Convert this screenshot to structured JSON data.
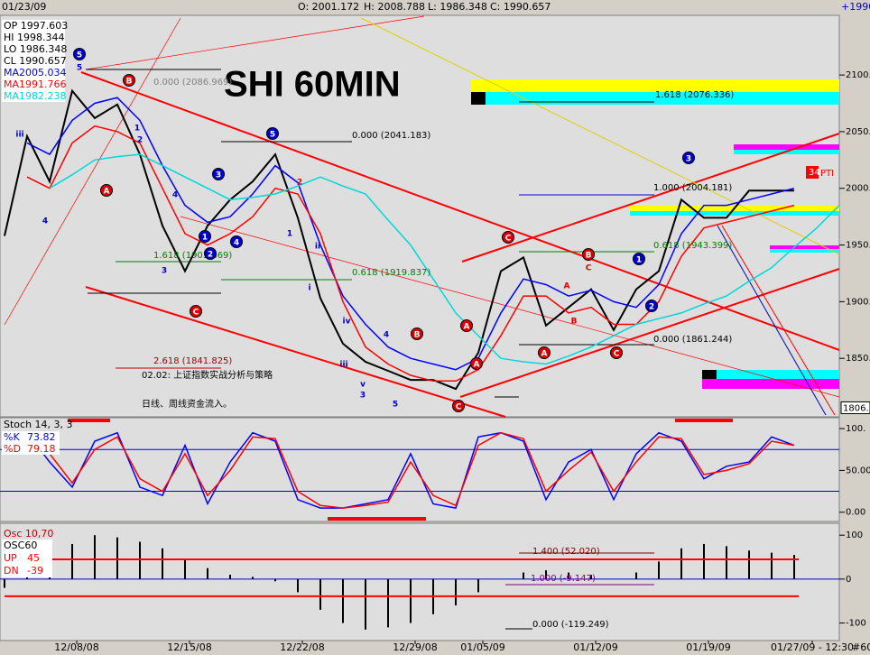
{
  "header": {
    "date": "01/23/09",
    "open": "O: 2001.172",
    "high": "H: 2008.788",
    "low": "L: 1986.348",
    "close": "C: 1990.657",
    "right": "+1990"
  },
  "footer": {
    "bar": "#60"
  },
  "chart_data": [
    {
      "type": "line",
      "title": "SHI 60MIN",
      "readout": [
        "OP 1997.603",
        "HI 1998.344",
        "LO 1986.348",
        "CL 1990.657"
      ],
      "x": [
        0,
        5,
        10,
        15,
        20,
        25,
        30,
        35,
        40,
        45,
        50,
        55,
        60,
        65,
        70,
        75,
        80,
        85,
        90,
        95,
        100,
        105,
        110,
        115,
        120,
        125,
        130,
        135,
        140,
        145,
        150,
        155,
        160,
        165,
        170,
        175,
        180,
        185
      ],
      "xlim": [
        0,
        185
      ],
      "ylim": [
        1800,
        2159
      ],
      "yticks": [
        {
          "value": 1850,
          "label": "1850."
        },
        {
          "value": 1900,
          "label": "1900."
        },
        {
          "value": 1950,
          "label": "1950."
        },
        {
          "value": 2000,
          "label": "2000."
        },
        {
          "value": 2050,
          "label": "2050."
        },
        {
          "value": 2100,
          "label": "2100."
        }
      ],
      "price_marker": {
        "value": 1806,
        "label": "1806."
      },
      "series": [
        {
          "color": "#000000",
          "values": [
            1958,
            2046,
            2006,
            2086,
            2062,
            2074,
            2030,
            1967,
            1927,
            1967,
            1990,
            2006,
            2030,
            1974,
            1903,
            1863,
            1847,
            1839,
            1831,
            1831,
            1823,
            1855,
            1927,
            1939,
            1879,
            1895,
            1911,
            1875,
            1911,
            1927,
            1990,
            1974,
            1974,
            1998,
            1998,
            1998,
            null,
            null
          ]
        },
        {
          "name": "MA2005.034",
          "color": "#0000ff",
          "values": [
            null,
            2040,
            2030,
            2060,
            2075,
            2080,
            2060,
            2020,
            1985,
            1970,
            1975,
            1995,
            2020,
            2005,
            1950,
            1905,
            1880,
            1860,
            1850,
            1845,
            1840,
            1850,
            1890,
            1920,
            1915,
            1905,
            1910,
            1900,
            1895,
            1915,
            1960,
            1985,
            1985,
            1990,
            1995,
            2000,
            null,
            null
          ]
        },
        {
          "name": "MA1991.766",
          "color": "#ff0000",
          "values": [
            null,
            2010,
            2000,
            2040,
            2055,
            2050,
            2040,
            2000,
            1960,
            1950,
            1960,
            1975,
            2000,
            1995,
            1960,
            1900,
            1860,
            1845,
            1835,
            1830,
            1830,
            1840,
            1870,
            1905,
            1905,
            1890,
            1895,
            1880,
            1880,
            1900,
            1940,
            1965,
            1970,
            1975,
            1980,
            1985,
            null,
            null
          ]
        },
        {
          "name": "MA1982.238",
          "color": "#00d8d8",
          "values": [
            null,
            null,
            2000,
            2012,
            2025,
            2028,
            2030,
            2020,
            2010,
            2000,
            1990,
            1992,
            1995,
            2002,
            2010,
            2002,
            1995,
            1972,
            1950,
            1920,
            1890,
            1870,
            1850,
            1847,
            1845,
            1852,
            1860,
            1870,
            1880,
            1885,
            1890,
            1898,
            1905,
            1918,
            1930,
            1948,
            1965,
            1985
          ]
        }
      ],
      "annotations": [
        "0.000 (2086.969)",
        "0.000 (2041.183)",
        "1.618 (2076.336)",
        "1.000 (2004.181)",
        "0.618 (1943.399)",
        "1.618 (1903.869)",
        "0.618 (1919.837)",
        "2.618 (1841.825)",
        "0.000 (1861.244)",
        "02.02: 上证指数实战分析与策略",
        "日线、周线资金流入。",
        "PTI",
        "34"
      ],
      "wave_labels": [
        "5",
        "5",
        "B",
        "A",
        "5",
        "3",
        "1",
        "2",
        "4",
        "C",
        "3",
        "1",
        "2",
        "i",
        "ii",
        "iii",
        "iv",
        "4",
        "v",
        "3",
        "5",
        "B",
        "C",
        "A",
        "A",
        "C",
        "A",
        "B",
        "A",
        "B",
        "C",
        "C",
        "1",
        "2",
        "3",
        "4",
        "iii",
        "1",
        "2",
        "4"
      ]
    },
    {
      "type": "line",
      "title": "Stoch 14, 3, 3",
      "x": [
        0,
        5,
        10,
        15,
        20,
        25,
        30,
        35,
        40,
        45,
        50,
        55,
        60,
        65,
        70,
        75,
        80,
        85,
        90,
        95,
        100,
        105,
        110,
        115,
        120,
        125,
        130,
        135,
        140,
        145,
        150,
        155,
        160,
        165,
        170,
        175,
        180,
        185
      ],
      "xlim": [
        0,
        185
      ],
      "ylim": [
        -10,
        113
      ],
      "yticks": [
        {
          "value": 100,
          "label": "100."
        },
        {
          "value": 50,
          "label": "50.00"
        },
        {
          "value": 0,
          "label": "0.00"
        }
      ],
      "levels": [
        75,
        25
      ],
      "series": [
        {
          "name": "%K",
          "last": 73.82,
          "color": "#0000ff",
          "values": [
            80,
            95,
            60,
            30,
            85,
            95,
            30,
            20,
            80,
            10,
            60,
            95,
            85,
            15,
            5,
            5,
            10,
            15,
            70,
            10,
            5,
            90,
            95,
            85,
            15,
            60,
            75,
            15,
            70,
            95,
            85,
            40,
            55,
            60,
            90,
            80,
            null,
            null
          ]
        },
        {
          "name": "%D",
          "last": 79.18,
          "color": "#ff0000",
          "values": [
            70,
            90,
            70,
            35,
            75,
            90,
            40,
            25,
            70,
            20,
            50,
            90,
            88,
            25,
            8,
            5,
            8,
            12,
            60,
            20,
            8,
            80,
            95,
            88,
            25,
            50,
            72,
            25,
            60,
            90,
            88,
            45,
            50,
            58,
            85,
            80,
            null,
            null
          ]
        }
      ]
    },
    {
      "type": "bar",
      "title": "Osc 10,70",
      "x": [
        0,
        5,
        10,
        15,
        20,
        25,
        30,
        35,
        40,
        45,
        50,
        55,
        60,
        65,
        70,
        75,
        80,
        85,
        90,
        95,
        100,
        105,
        110,
        115,
        120,
        125,
        130,
        135,
        140,
        145,
        150,
        155,
        160,
        165,
        170,
        175,
        180,
        185
      ],
      "xlim": [
        0,
        185
      ],
      "ylim": [
        -138,
        123
      ],
      "yticks": [
        100,
        0,
        -100
      ],
      "xticks": [
        {
          "value": 16,
          "label": "12/08/08"
        },
        {
          "value": 41,
          "label": "12/15/08"
        },
        {
          "value": 66,
          "label": "12/22/08"
        },
        {
          "value": 91,
          "label": "12/29/08"
        },
        {
          "value": 106,
          "label": "01/05/09"
        },
        {
          "value": 131,
          "label": "01/12/09"
        },
        {
          "value": 156,
          "label": "01/19/09"
        },
        {
          "value": 179,
          "label": "01/27/09 - 12:30"
        }
      ],
      "up": {
        "label": "UP",
        "value": 45
      },
      "dn": {
        "label": "DN",
        "value": -39
      },
      "series": [
        {
          "name": "OSC60",
          "color": "#000000",
          "values": [
            -20,
            10,
            50,
            80,
            100,
            95,
            85,
            70,
            45,
            25,
            10,
            5,
            -5,
            -30,
            -70,
            -100,
            -115,
            -110,
            -100,
            -80,
            -60,
            -30,
            0,
            15,
            20,
            15,
            10,
            0,
            15,
            40,
            70,
            80,
            75,
            65,
            60,
            55,
            null,
            null
          ]
        }
      ],
      "annotations": [
        "1.400 (52.020)",
        "1.000 (-9.147)",
        "0.000 (-119.249)"
      ]
    }
  ]
}
